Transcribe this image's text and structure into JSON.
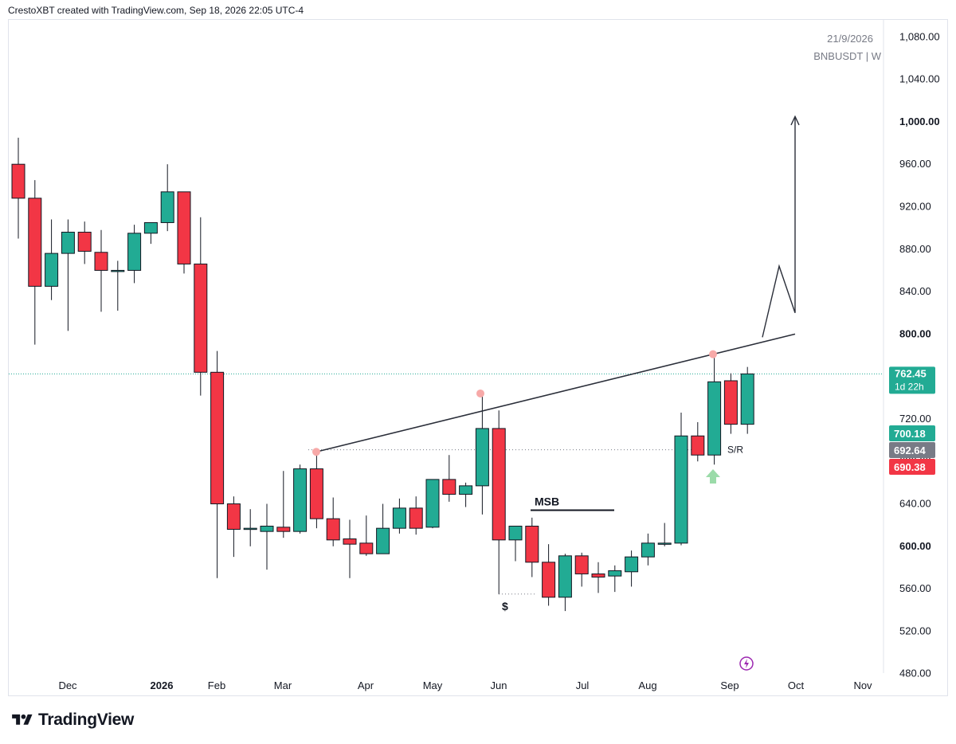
{
  "header": {
    "attribution": "CrestoXBT created with TradingView.com, Sep 18, 2026 22:05 UTC-4"
  },
  "watermark": {
    "date": "21/9/2026",
    "symbol": "BNBUSDT | W"
  },
  "brand": {
    "name": "TradingView"
  },
  "colors": {
    "up": "#22ab94",
    "down": "#f23645",
    "trendline": "#2a2e39",
    "pivot": "#f7a9a8",
    "price_line": "#22ab94",
    "arrow_green": "#9bdba9",
    "icon_purple": "#9c27b0"
  },
  "chart_data": {
    "type": "candlestick",
    "symbol": "BNBUSDT",
    "interval": "W",
    "ylim": [
      458,
      1096
    ],
    "y_ticks": [
      "1,080.00",
      "1,040.00",
      "1,000.00",
      "960.00",
      "920.00",
      "880.00",
      "840.00",
      "800.00",
      "760.00",
      "720.00",
      "680.00",
      "640.00",
      "600.00",
      "560.00",
      "520.00",
      "480.00"
    ],
    "x_ticks": [
      "Dec",
      "2026",
      "Feb",
      "Mar",
      "Apr",
      "May",
      "Jun",
      "Jul",
      "Aug",
      "Sep",
      "Oct",
      "Nov"
    ],
    "candles": [
      {
        "o": 960,
        "h": 985,
        "l": 890,
        "c": 928
      },
      {
        "o": 928,
        "h": 945,
        "l": 790,
        "c": 845
      },
      {
        "o": 845,
        "h": 908,
        "l": 832,
        "c": 876
      },
      {
        "o": 876,
        "h": 908,
        "l": 803,
        "c": 896
      },
      {
        "o": 896,
        "h": 906,
        "l": 866,
        "c": 878
      },
      {
        "o": 877,
        "h": 898,
        "l": 821,
        "c": 860
      },
      {
        "o": 860,
        "h": 869,
        "l": 822,
        "c": 860
      },
      {
        "o": 860,
        "h": 903,
        "l": 848,
        "c": 895
      },
      {
        "o": 895,
        "h": 905,
        "l": 885,
        "c": 905
      },
      {
        "o": 905,
        "h": 960,
        "l": 897,
        "c": 934
      },
      {
        "o": 934,
        "h": 934,
        "l": 857,
        "c": 866
      },
      {
        "o": 866,
        "h": 910,
        "l": 742,
        "c": 764
      },
      {
        "o": 764,
        "h": 784,
        "l": 570,
        "c": 640
      },
      {
        "o": 640,
        "h": 647,
        "l": 590,
        "c": 616
      },
      {
        "o": 616,
        "h": 635,
        "l": 600,
        "c": 617
      },
      {
        "o": 614,
        "h": 640,
        "l": 578,
        "c": 619
      },
      {
        "o": 618,
        "h": 671,
        "l": 608,
        "c": 614
      },
      {
        "o": 614,
        "h": 677,
        "l": 612,
        "c": 673
      },
      {
        "o": 673,
        "h": 686,
        "l": 617,
        "c": 626
      },
      {
        "o": 626,
        "h": 646,
        "l": 600,
        "c": 606
      },
      {
        "o": 607,
        "h": 625,
        "l": 570,
        "c": 602
      },
      {
        "o": 603,
        "h": 629,
        "l": 591,
        "c": 593
      },
      {
        "o": 593,
        "h": 640,
        "l": 593,
        "c": 617
      },
      {
        "o": 617,
        "h": 645,
        "l": 612,
        "c": 636
      },
      {
        "o": 636,
        "h": 647,
        "l": 611,
        "c": 617
      },
      {
        "o": 618,
        "h": 663,
        "l": 617,
        "c": 663
      },
      {
        "o": 663,
        "h": 686,
        "l": 642,
        "c": 649
      },
      {
        "o": 649,
        "h": 660,
        "l": 637,
        "c": 657
      },
      {
        "o": 657,
        "h": 741,
        "l": 630,
        "c": 711
      },
      {
        "o": 711,
        "h": 728,
        "l": 555,
        "c": 606
      },
      {
        "o": 606,
        "h": 619,
        "l": 586,
        "c": 619
      },
      {
        "o": 619,
        "h": 627,
        "l": 571,
        "c": 585
      },
      {
        "o": 585,
        "h": 602,
        "l": 544,
        "c": 552
      },
      {
        "o": 552,
        "h": 593,
        "l": 539,
        "c": 591
      },
      {
        "o": 591,
        "h": 594,
        "l": 562,
        "c": 574
      },
      {
        "o": 574,
        "h": 585,
        "l": 556,
        "c": 571
      },
      {
        "o": 572,
        "h": 582,
        "l": 557,
        "c": 577
      },
      {
        "o": 576,
        "h": 596,
        "l": 562,
        "c": 590
      },
      {
        "o": 590,
        "h": 612,
        "l": 582,
        "c": 603
      },
      {
        "o": 603,
        "h": 622,
        "l": 600,
        "c": 603
      },
      {
        "o": 603,
        "h": 726,
        "l": 601,
        "c": 704
      },
      {
        "o": 704,
        "h": 717,
        "l": 680,
        "c": 686
      },
      {
        "o": 686,
        "h": 784,
        "l": 677,
        "c": 755
      },
      {
        "o": 756,
        "h": 763,
        "l": 706,
        "c": 715
      },
      {
        "o": 715,
        "h": 769,
        "l": 706,
        "c": 762.45
      }
    ],
    "last_price": "762.45",
    "countdown": "1d 22h",
    "price_labels": [
      {
        "value": "700.18",
        "color": "#22ab94"
      },
      {
        "value": "692.64",
        "color": "#787b86"
      },
      {
        "value": "690.38",
        "color": "#f23645"
      }
    ],
    "annotations": {
      "msb": "MSB",
      "dollar": "$",
      "sr": "S/R"
    }
  }
}
